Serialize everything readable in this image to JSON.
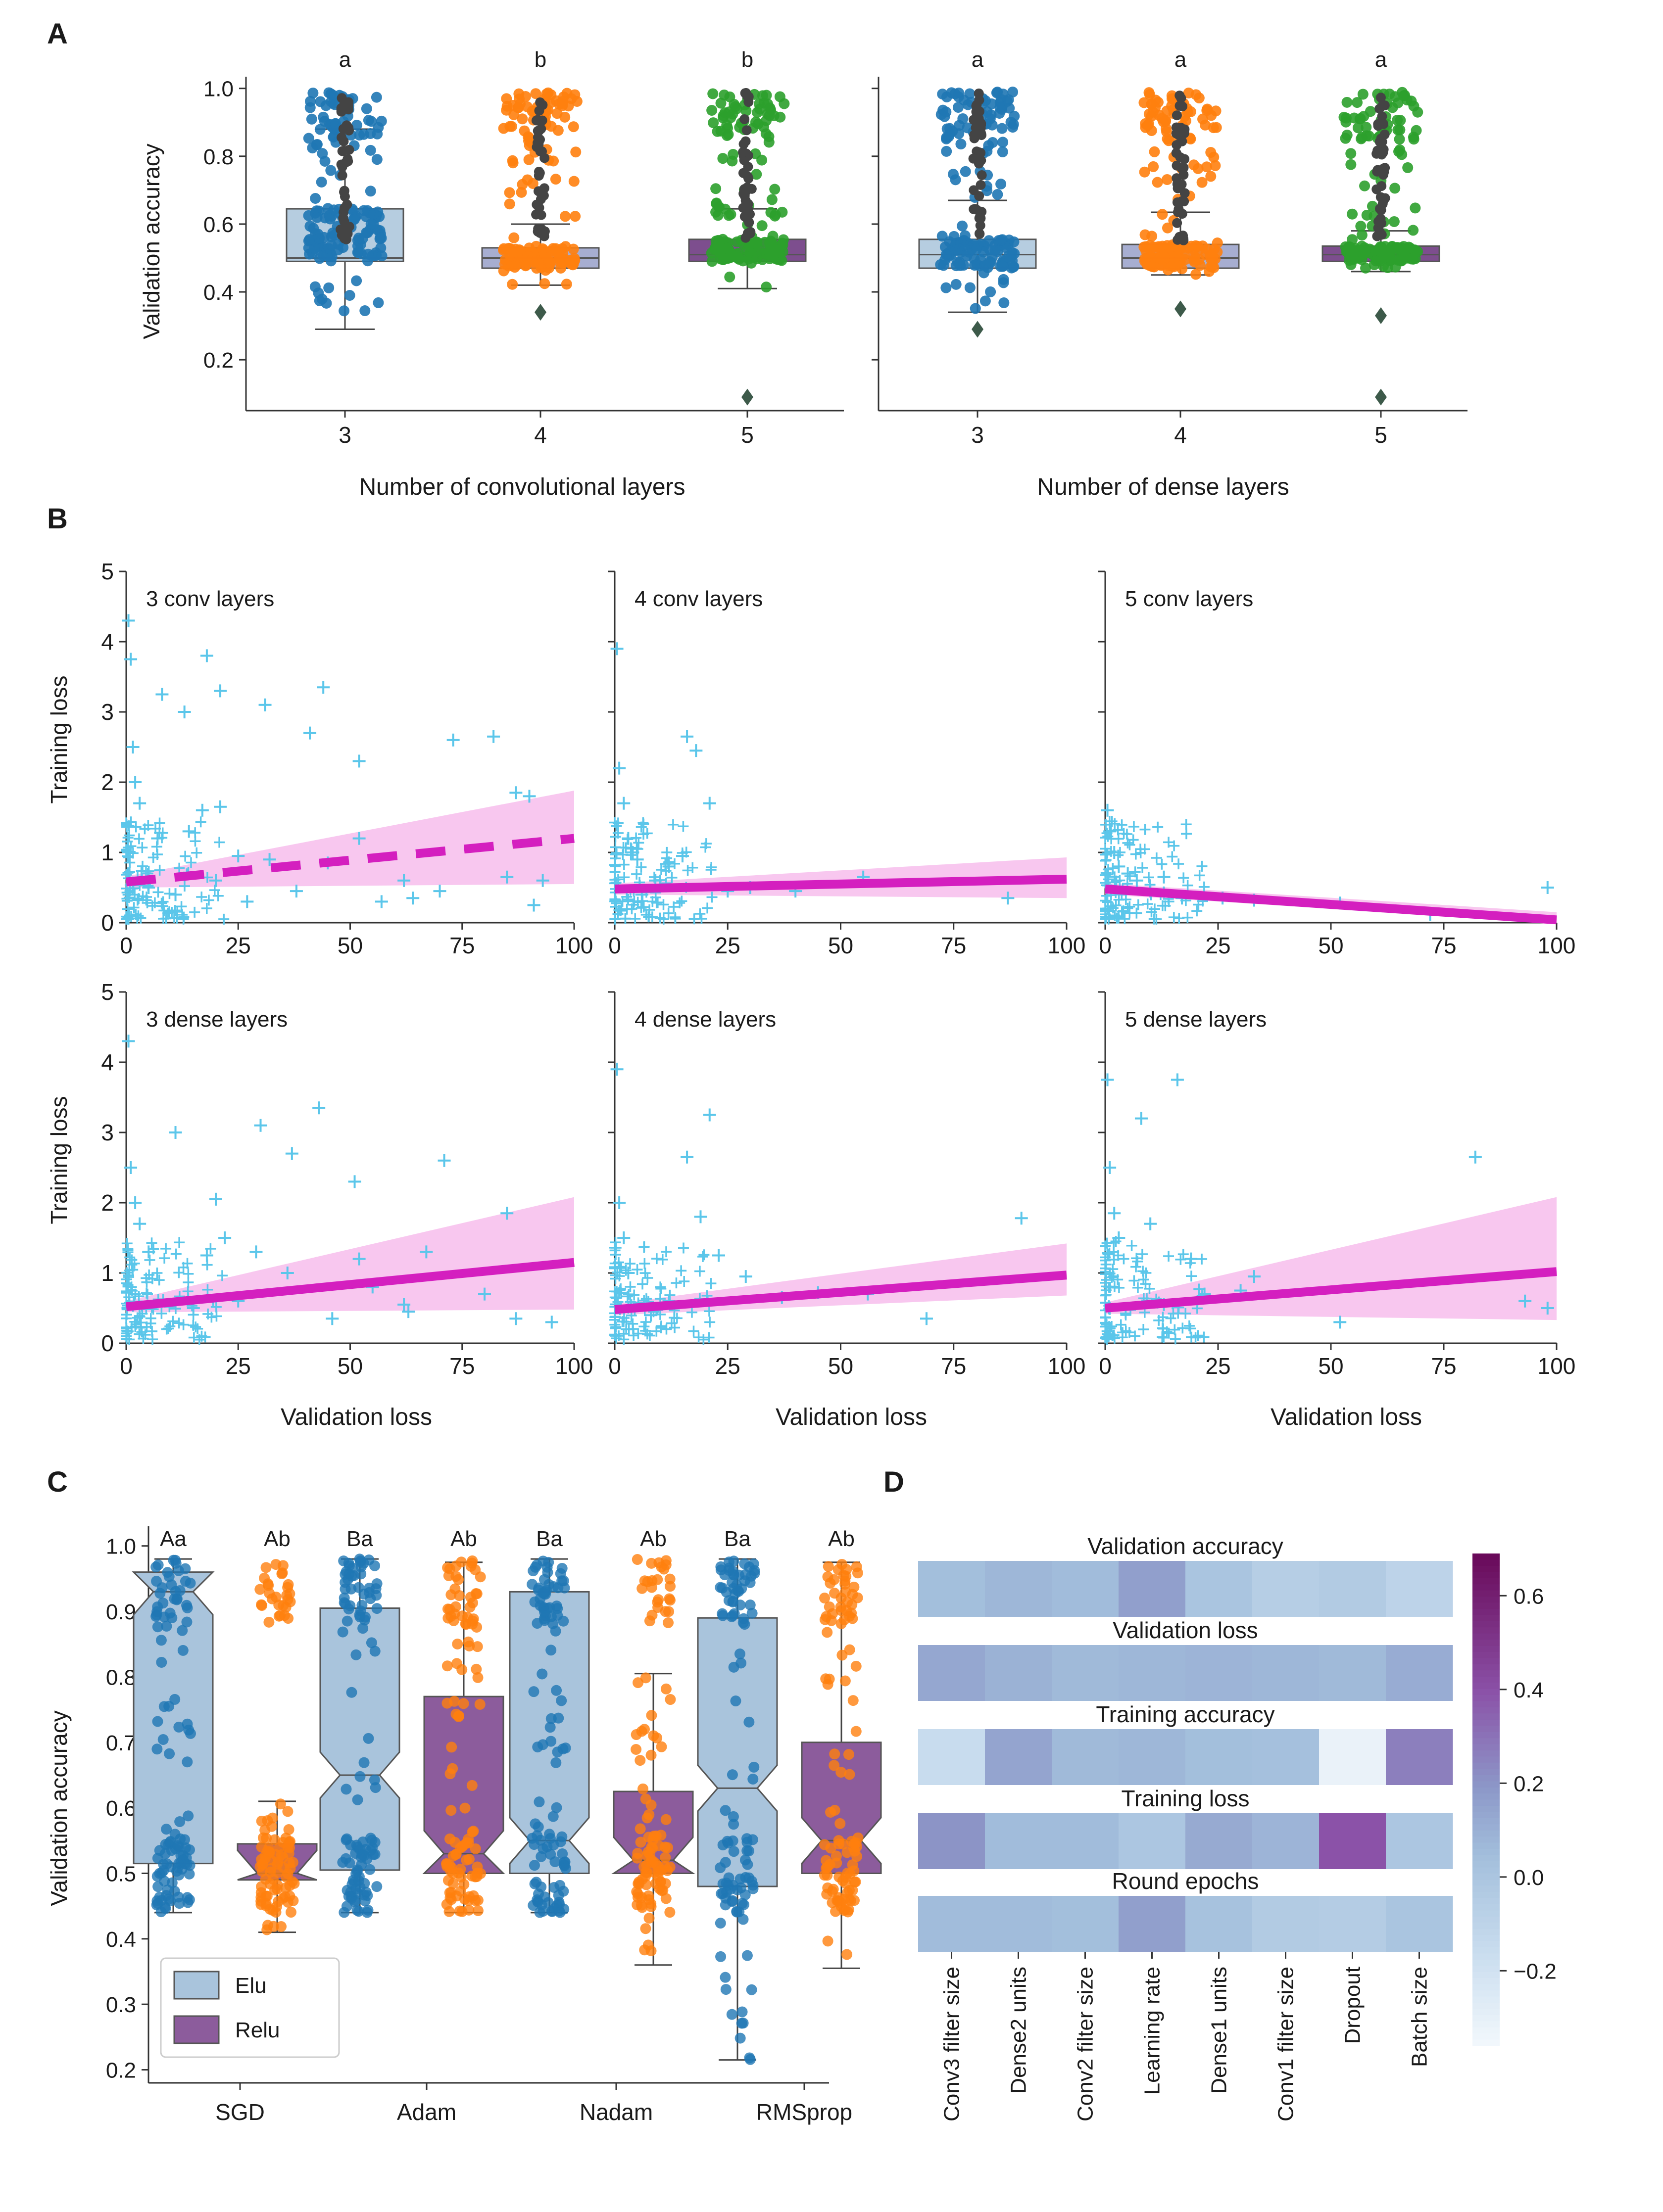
{
  "figure": {
    "panels": {
      "A": "A",
      "B": "B",
      "C": "C",
      "D": "D"
    }
  },
  "colors": {
    "blue": "#1f77b4",
    "orange": "#ff7f0e",
    "green": "#2ca02c",
    "box_light": "#b6cde0",
    "box_lavender": "#a7aed1",
    "box_purple": "#7d4e8e",
    "box_elu": "#a9c4dc",
    "box_relu": "#8c5c9c",
    "cyan": "#5bc6ea",
    "magenta": "#d41fbf",
    "band": "#f6b4ea"
  },
  "chart_data": [
    {
      "id": "A-left",
      "type": "box",
      "xlabel": "Number of convolutional layers",
      "ylabel": "Validation accuracy",
      "ylim": [
        0.05,
        1.02
      ],
      "yticks": [
        0.2,
        0.4,
        0.6,
        0.8,
        1.0
      ],
      "ytick_labels": [
        "0.2",
        "0.4",
        "0.6",
        "0.8",
        "1.0"
      ],
      "categories": [
        "3",
        "4",
        "5"
      ],
      "letters": [
        "a",
        "b",
        "b"
      ],
      "boxes": [
        {
          "q1": 0.49,
          "median": 0.5,
          "q3": 0.645,
          "whislo": 0.29,
          "whishi": 0.88,
          "outliers": []
        },
        {
          "q1": 0.47,
          "median": 0.5,
          "q3": 0.53,
          "whislo": 0.42,
          "whishi": 0.6,
          "outliers": [
            0.34
          ]
        },
        {
          "q1": 0.49,
          "median": 0.51,
          "q3": 0.555,
          "whislo": 0.41,
          "whishi": 0.645,
          "outliers": [
            0.09
          ]
        }
      ]
    },
    {
      "id": "A-right",
      "type": "box",
      "xlabel": "Number of dense layers",
      "ylim": [
        0.05,
        1.02
      ],
      "categories": [
        "3",
        "4",
        "5"
      ],
      "letters": [
        "a",
        "a",
        "a"
      ],
      "boxes": [
        {
          "q1": 0.47,
          "median": 0.51,
          "q3": 0.555,
          "whislo": 0.34,
          "whishi": 0.67,
          "outliers": [
            0.29
          ]
        },
        {
          "q1": 0.47,
          "median": 0.5,
          "q3": 0.54,
          "whislo": 0.45,
          "whishi": 0.635,
          "outliers": [
            0.35
          ]
        },
        {
          "q1": 0.49,
          "median": 0.51,
          "q3": 0.535,
          "whislo": 0.46,
          "whishi": 0.58,
          "outliers": [
            0.33,
            0.09
          ]
        }
      ]
    },
    {
      "id": "B",
      "type": "scatter",
      "xlabel": "Validation loss",
      "ylabel": "Training loss",
      "xlim": [
        0,
        100
      ],
      "ylim": [
        0,
        5
      ],
      "xticks": [
        0,
        25,
        50,
        75,
        100
      ],
      "xtick_labels": [
        "0",
        "25",
        "50",
        "75",
        "100"
      ],
      "yticks": [
        0,
        1,
        2,
        3,
        4,
        5
      ],
      "ytick_labels": [
        "0",
        "1",
        "2",
        "3",
        "4",
        "5"
      ],
      "panels": [
        {
          "title": "3 conv layers",
          "fit": [
            0.58,
            1.2
          ],
          "band_hi": 1.88,
          "band_lo": 0.55,
          "dashed": true,
          "points": [
            [
              0.5,
              4.3
            ],
            [
              1,
              3.75
            ],
            [
              1.5,
              2.5
            ],
            [
              2,
              2.0
            ],
            [
              3,
              1.7
            ],
            [
              8,
              3.25
            ],
            [
              13,
              3.0
            ],
            [
              18,
              3.8
            ],
            [
              21,
              3.3
            ],
            [
              31,
              3.1
            ],
            [
              41,
              2.7
            ],
            [
              44,
              3.35
            ],
            [
              52,
              2.3
            ],
            [
              73,
              2.6
            ],
            [
              82,
              2.65
            ],
            [
              87,
              1.85
            ],
            [
              90,
              1.8
            ],
            [
              17,
              1.6
            ],
            [
              21,
              1.65
            ],
            [
              14,
              1.3
            ],
            [
              7,
              1.2
            ],
            [
              25,
              0.95
            ],
            [
              32,
              0.9
            ],
            [
              45,
              0.85
            ],
            [
              52,
              1.2
            ],
            [
              62,
              0.6
            ],
            [
              70,
              0.45
            ],
            [
              85,
              0.65
            ],
            [
              93,
              0.6
            ],
            [
              91,
              0.25
            ],
            [
              64,
              0.35
            ],
            [
              57,
              0.3
            ],
            [
              38,
              0.45
            ],
            [
              27,
              0.3
            ],
            [
              20,
              0.6
            ],
            [
              11,
              0.4
            ],
            [
              5,
              0.5
            ]
          ]
        },
        {
          "title": "4 conv layers",
          "fit": [
            0.48,
            0.62
          ],
          "band_hi": 0.93,
          "band_lo": 0.35,
          "dashed": false,
          "points": [
            [
              0.5,
              3.9
            ],
            [
              1,
              2.2
            ],
            [
              2,
              1.7
            ],
            [
              3,
              1.2
            ],
            [
              4,
              1.0
            ],
            [
              5,
              0.9
            ],
            [
              16,
              2.65
            ],
            [
              18,
              2.45
            ],
            [
              21,
              1.7
            ],
            [
              15,
              0.95
            ],
            [
              12,
              0.8
            ],
            [
              25,
              0.45
            ],
            [
              30,
              0.5
            ],
            [
              40,
              0.45
            ],
            [
              55,
              0.65
            ],
            [
              87,
              0.35
            ],
            [
              9,
              0.6
            ],
            [
              6,
              0.4
            ]
          ]
        },
        {
          "title": "5 conv layers",
          "fit": [
            0.48,
            0.04
          ],
          "band_hi": 0.15,
          "band_lo": 0.0,
          "dashed": false,
          "points": [
            [
              0.5,
              1.6
            ],
            [
              1,
              1.3
            ],
            [
              2,
              1.0
            ],
            [
              3,
              0.8
            ],
            [
              5,
              0.7
            ],
            [
              7,
              0.6
            ],
            [
              13,
              0.65
            ],
            [
              17,
              0.35
            ],
            [
              26,
              0.35
            ],
            [
              33,
              0.32
            ],
            [
              52,
              0.28
            ],
            [
              72,
              0.12
            ],
            [
              98,
              0.5
            ],
            [
              10,
              0.45
            ]
          ]
        },
        {
          "title": "3 dense layers",
          "fit": [
            0.52,
            1.15
          ],
          "band_hi": 2.08,
          "band_lo": 0.48,
          "dashed": false,
          "points": [
            [
              0.5,
              4.3
            ],
            [
              1,
              2.5
            ],
            [
              2,
              2.0
            ],
            [
              3,
              1.7
            ],
            [
              5,
              1.3
            ],
            [
              11,
              3.0
            ],
            [
              20,
              2.05
            ],
            [
              22,
              1.5
            ],
            [
              30,
              3.1
            ],
            [
              37,
              2.7
            ],
            [
              43,
              3.35
            ],
            [
              51,
              2.3
            ],
            [
              71,
              2.6
            ],
            [
              85,
              1.85
            ],
            [
              18,
              1.25
            ],
            [
              29,
              1.3
            ],
            [
              36,
              1.0
            ],
            [
              52,
              1.2
            ],
            [
              67,
              1.3
            ],
            [
              55,
              0.8
            ],
            [
              62,
              0.55
            ],
            [
              80,
              0.7
            ],
            [
              87,
              0.35
            ],
            [
              95,
              0.3
            ],
            [
              63,
              0.45
            ],
            [
              46,
              0.35
            ],
            [
              25,
              0.6
            ],
            [
              15,
              0.5
            ]
          ]
        },
        {
          "title": "4 dense layers",
          "fit": [
            0.48,
            0.97
          ],
          "band_hi": 1.42,
          "band_lo": 0.68,
          "dashed": false,
          "points": [
            [
              0.5,
              3.9
            ],
            [
              1,
              2.0
            ],
            [
              2,
              1.5
            ],
            [
              3,
              1.0
            ],
            [
              16,
              2.65
            ],
            [
              21,
              3.25
            ],
            [
              19,
              1.8
            ],
            [
              23,
              1.25
            ],
            [
              29,
              0.95
            ],
            [
              37,
              0.65
            ],
            [
              45,
              0.72
            ],
            [
              56,
              0.7
            ],
            [
              69,
              0.35
            ],
            [
              90,
              1.78
            ],
            [
              12,
              0.6
            ],
            [
              8,
              0.4
            ]
          ]
        },
        {
          "title": "5 dense layers",
          "fit": [
            0.5,
            1.02
          ],
          "band_hi": 2.08,
          "band_lo": 0.33,
          "dashed": false,
          "points": [
            [
              0.5,
              3.75
            ],
            [
              1,
              2.5
            ],
            [
              2,
              1.85
            ],
            [
              3,
              1.5
            ],
            [
              8,
              3.2
            ],
            [
              10,
              1.7
            ],
            [
              16,
              3.75
            ],
            [
              19,
              1.2
            ],
            [
              22,
              0.7
            ],
            [
              30,
              0.75
            ],
            [
              33,
              0.95
            ],
            [
              52,
              0.3
            ],
            [
              82,
              2.65
            ],
            [
              93,
              0.6
            ],
            [
              98,
              0.5
            ],
            [
              13,
              0.55
            ]
          ]
        }
      ]
    },
    {
      "id": "C",
      "type": "box",
      "ylabel": "Validation accuracy",
      "ylim": [
        0.18,
        1.03
      ],
      "yticks": [
        0.2,
        0.3,
        0.4,
        0.5,
        0.6,
        0.7,
        0.8,
        0.9,
        1.0
      ],
      "ytick_labels": [
        "0.2",
        "0.3",
        "0.4",
        "0.5",
        "0.6",
        "0.7",
        "0.8",
        "0.9",
        "1.0"
      ],
      "categories": [
        "SGD",
        "Adam",
        "Nadam",
        "RMSprop"
      ],
      "legend": [
        "Elu",
        "Relu"
      ],
      "letters": [
        [
          "Aa",
          "Ab"
        ],
        [
          "Ba",
          "Ab"
        ],
        [
          "Ba",
          "Ab"
        ],
        [
          "Ba",
          "Ab"
        ]
      ],
      "series": [
        {
          "name": "Elu",
          "boxes": [
            {
              "q1": 0.515,
              "median": 0.93,
              "q3": 0.96,
              "whislo": 0.44,
              "whishi": 0.98
            },
            {
              "q1": 0.505,
              "median": 0.65,
              "q3": 0.905,
              "whislo": 0.44,
              "whishi": 0.98
            },
            {
              "q1": 0.5,
              "median": 0.55,
              "q3": 0.93,
              "whislo": 0.44,
              "whishi": 0.98
            },
            {
              "q1": 0.48,
              "median": 0.63,
              "q3": 0.89,
              "whislo": 0.215,
              "whishi": 0.98
            }
          ]
        },
        {
          "name": "Relu",
          "boxes": [
            {
              "q1": 0.49,
              "median": 0.5,
              "q3": 0.545,
              "whislo": 0.41,
              "whishi": 0.61
            },
            {
              "q1": 0.5,
              "median": 0.53,
              "q3": 0.77,
              "whislo": 0.44,
              "whishi": 0.975
            },
            {
              "q1": 0.5,
              "median": 0.52,
              "q3": 0.625,
              "whislo": 0.36,
              "whishi": 0.805
            },
            {
              "q1": 0.5,
              "median": 0.55,
              "q3": 0.7,
              "whislo": 0.355,
              "whishi": 0.975
            }
          ]
        }
      ]
    },
    {
      "id": "D",
      "type": "heatmap",
      "rows": [
        "Validation accuracy",
        "Validation loss",
        "Training accuracy",
        "Training loss",
        "Round epochs"
      ],
      "columns": [
        "Conv3 filter size",
        "Dense2 units",
        "Conv2 filter size",
        "Learning rate",
        "Dense1 units",
        "Conv1 filter size",
        "Dropout",
        "Batch size"
      ],
      "values": [
        [
          0.05,
          0.08,
          0.06,
          0.17,
          0.01,
          -0.05,
          -0.03,
          -0.09
        ],
        [
          0.14,
          0.1,
          0.07,
          0.08,
          0.09,
          0.08,
          0.07,
          0.12
        ],
        [
          -0.15,
          0.15,
          0.07,
          0.08,
          0.05,
          0.04,
          -0.31,
          0.27
        ],
        [
          0.21,
          0.06,
          0.06,
          0.0,
          0.13,
          0.09,
          0.4,
          0.0
        ],
        [
          0.06,
          0.06,
          0.05,
          0.17,
          0.03,
          -0.03,
          -0.04,
          0.01
        ]
      ],
      "colorbar_ticks": [
        0.6,
        0.4,
        0.2,
        0.0,
        -0.2
      ],
      "colorbar_labels": [
        "0.6",
        "0.4",
        "0.2",
        "0.0",
        "−0.2"
      ],
      "vmin": -0.36,
      "vmax": 0.69
    }
  ]
}
